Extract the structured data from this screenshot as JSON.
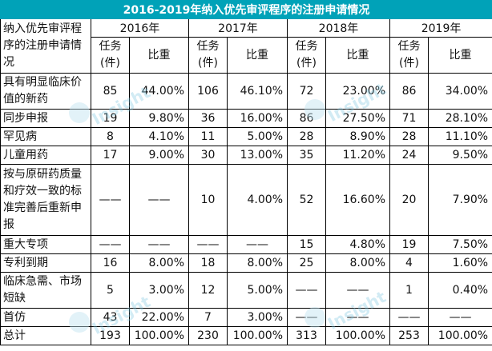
{
  "title": "2016-2019年纳入优先审评程序的注册申请情况",
  "corner_label": "纳入优先审评程序的注册申请情况",
  "years": [
    "2016年",
    "2017年",
    "2018年",
    "2019年"
  ],
  "sub_headers": {
    "count": "任务(件)",
    "ratio": "比重"
  },
  "rows": [
    {
      "label": "具有明显临床价值的新药",
      "cells": [
        "85",
        "44.00%",
        "106",
        "46.10%",
        "72",
        "23.00%",
        "86",
        "34.00%"
      ]
    },
    {
      "label": "同步申报",
      "cells": [
        "19",
        "9.80%",
        "36",
        "16.00%",
        "86",
        "27.50%",
        "71",
        "28.10%"
      ]
    },
    {
      "label": "罕见病",
      "cells": [
        "8",
        "4.10%",
        "11",
        "5.00%",
        "28",
        "8.90%",
        "28",
        "11.10%"
      ]
    },
    {
      "label": "儿童用药",
      "cells": [
        "17",
        "9.00%",
        "30",
        "13.00%",
        "35",
        "11.20%",
        "24",
        "9.50%"
      ]
    },
    {
      "label": "按与原研药质量和疗效一致的标准完善后重新申报",
      "cells": [
        "——",
        "——",
        "10",
        "4.00%",
        "52",
        "16.60%",
        "20",
        "7.90%"
      ]
    },
    {
      "label": "重大专项",
      "cells": [
        "——",
        "——",
        "——",
        "——",
        "15",
        "4.80%",
        "19",
        "7.50%"
      ]
    },
    {
      "label": "专利到期",
      "cells": [
        "16",
        "8.00%",
        "18",
        "8.00%",
        "25",
        "8.00%",
        "4",
        "1.60%"
      ]
    },
    {
      "label": "临床急需、市场短缺",
      "cells": [
        "5",
        "3.00%",
        "12",
        "5.00%",
        "——",
        "——",
        "1",
        "0.40%"
      ]
    },
    {
      "label": "首仿",
      "cells": [
        "43",
        "22.00%",
        "7",
        "3.00%",
        "——",
        "——",
        "——",
        "——"
      ]
    },
    {
      "label": "总计",
      "cells": [
        "193",
        "100.00%",
        "230",
        "100.00%",
        "313",
        "100.00%",
        "253",
        "100.00%"
      ]
    }
  ],
  "watermark": "Insight",
  "colors": {
    "title_bg": "#00a2b8",
    "title_text": "#ffffff"
  }
}
